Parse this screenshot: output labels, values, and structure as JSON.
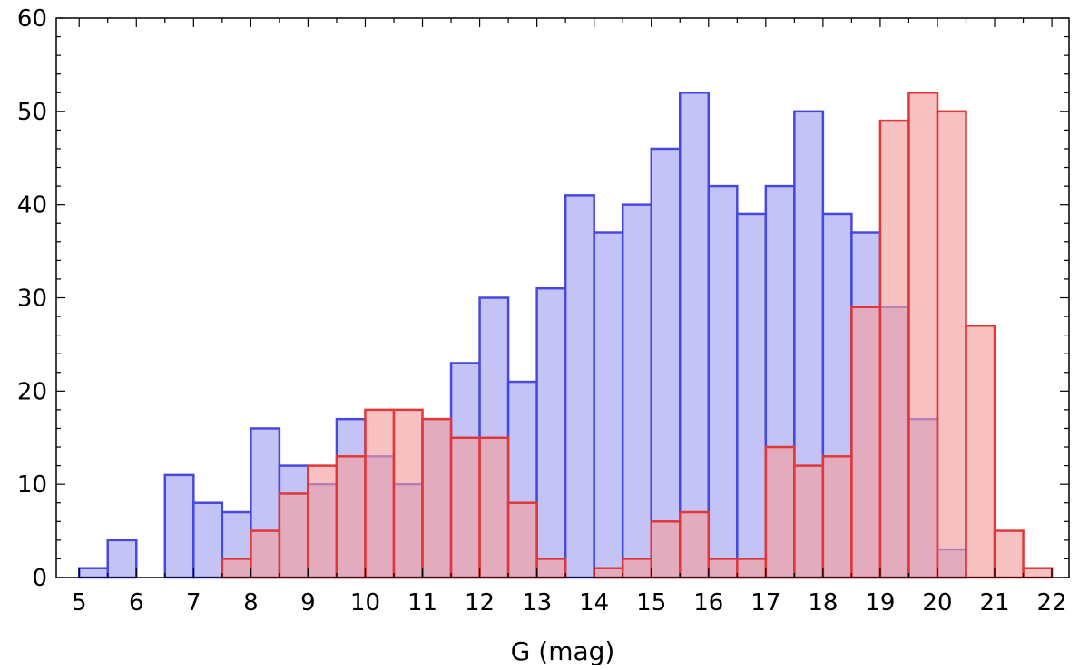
{
  "chart_data": {
    "type": "bar",
    "title": "",
    "xlabel": "G (mag)",
    "ylabel": "",
    "xlim": [
      4.6,
      22.3
    ],
    "ylim": [
      0,
      60
    ],
    "bin_width": 0.5,
    "xticks": [
      5,
      6,
      7,
      8,
      9,
      10,
      11,
      12,
      13,
      14,
      15,
      16,
      17,
      18,
      19,
      20,
      21,
      22
    ],
    "yticks": [
      0,
      10,
      20,
      30,
      40,
      50,
      60
    ],
    "grid": false,
    "legend": "none",
    "series": [
      {
        "fill": "#bcbcf5",
        "stroke": "#4848e0",
        "bins": [
          {
            "x0": 5.0,
            "y": 1
          },
          {
            "x0": 5.5,
            "y": 4
          },
          {
            "x0": 6.0,
            "y": 0
          },
          {
            "x0": 6.5,
            "y": 11
          },
          {
            "x0": 7.0,
            "y": 8
          },
          {
            "x0": 7.5,
            "y": 7
          },
          {
            "x0": 8.0,
            "y": 16
          },
          {
            "x0": 8.5,
            "y": 12
          },
          {
            "x0": 9.0,
            "y": 10
          },
          {
            "x0": 9.5,
            "y": 17
          },
          {
            "x0": 10.0,
            "y": 13
          },
          {
            "x0": 10.5,
            "y": 10
          },
          {
            "x0": 11.0,
            "y": 17
          },
          {
            "x0": 11.5,
            "y": 23
          },
          {
            "x0": 12.0,
            "y": 30
          },
          {
            "x0": 12.5,
            "y": 21
          },
          {
            "x0": 13.0,
            "y": 31
          },
          {
            "x0": 13.5,
            "y": 41
          },
          {
            "x0": 14.0,
            "y": 37
          },
          {
            "x0": 14.5,
            "y": 40
          },
          {
            "x0": 15.0,
            "y": 46
          },
          {
            "x0": 15.5,
            "y": 52
          },
          {
            "x0": 16.0,
            "y": 42
          },
          {
            "x0": 16.5,
            "y": 39
          },
          {
            "x0": 17.0,
            "y": 42
          },
          {
            "x0": 17.5,
            "y": 50
          },
          {
            "x0": 18.0,
            "y": 39
          },
          {
            "x0": 18.5,
            "y": 37
          },
          {
            "x0": 19.0,
            "y": 29
          },
          {
            "x0": 19.5,
            "y": 17
          },
          {
            "x0": 20.0,
            "y": 3
          }
        ]
      },
      {
        "fill": "#f5a0a0",
        "stroke": "#e03838",
        "bins": [
          {
            "x0": 7.5,
            "y": 2
          },
          {
            "x0": 8.0,
            "y": 5
          },
          {
            "x0": 8.5,
            "y": 9
          },
          {
            "x0": 9.0,
            "y": 12
          },
          {
            "x0": 9.5,
            "y": 13
          },
          {
            "x0": 10.0,
            "y": 18
          },
          {
            "x0": 10.5,
            "y": 18
          },
          {
            "x0": 11.0,
            "y": 17
          },
          {
            "x0": 11.5,
            "y": 15
          },
          {
            "x0": 12.0,
            "y": 15
          },
          {
            "x0": 12.5,
            "y": 8
          },
          {
            "x0": 13.0,
            "y": 2
          },
          {
            "x0": 13.5,
            "y": 0
          },
          {
            "x0": 14.0,
            "y": 1
          },
          {
            "x0": 14.5,
            "y": 2
          },
          {
            "x0": 15.0,
            "y": 6
          },
          {
            "x0": 15.5,
            "y": 7
          },
          {
            "x0": 16.0,
            "y": 2
          },
          {
            "x0": 16.5,
            "y": 2
          },
          {
            "x0": 17.0,
            "y": 14
          },
          {
            "x0": 17.5,
            "y": 12
          },
          {
            "x0": 18.0,
            "y": 13
          },
          {
            "x0": 18.5,
            "y": 29
          },
          {
            "x0": 19.0,
            "y": 49
          },
          {
            "x0": 19.5,
            "y": 52
          },
          {
            "x0": 20.0,
            "y": 50
          },
          {
            "x0": 20.5,
            "y": 27
          },
          {
            "x0": 21.0,
            "y": 5
          },
          {
            "x0": 21.5,
            "y": 1
          }
        ]
      }
    ]
  }
}
